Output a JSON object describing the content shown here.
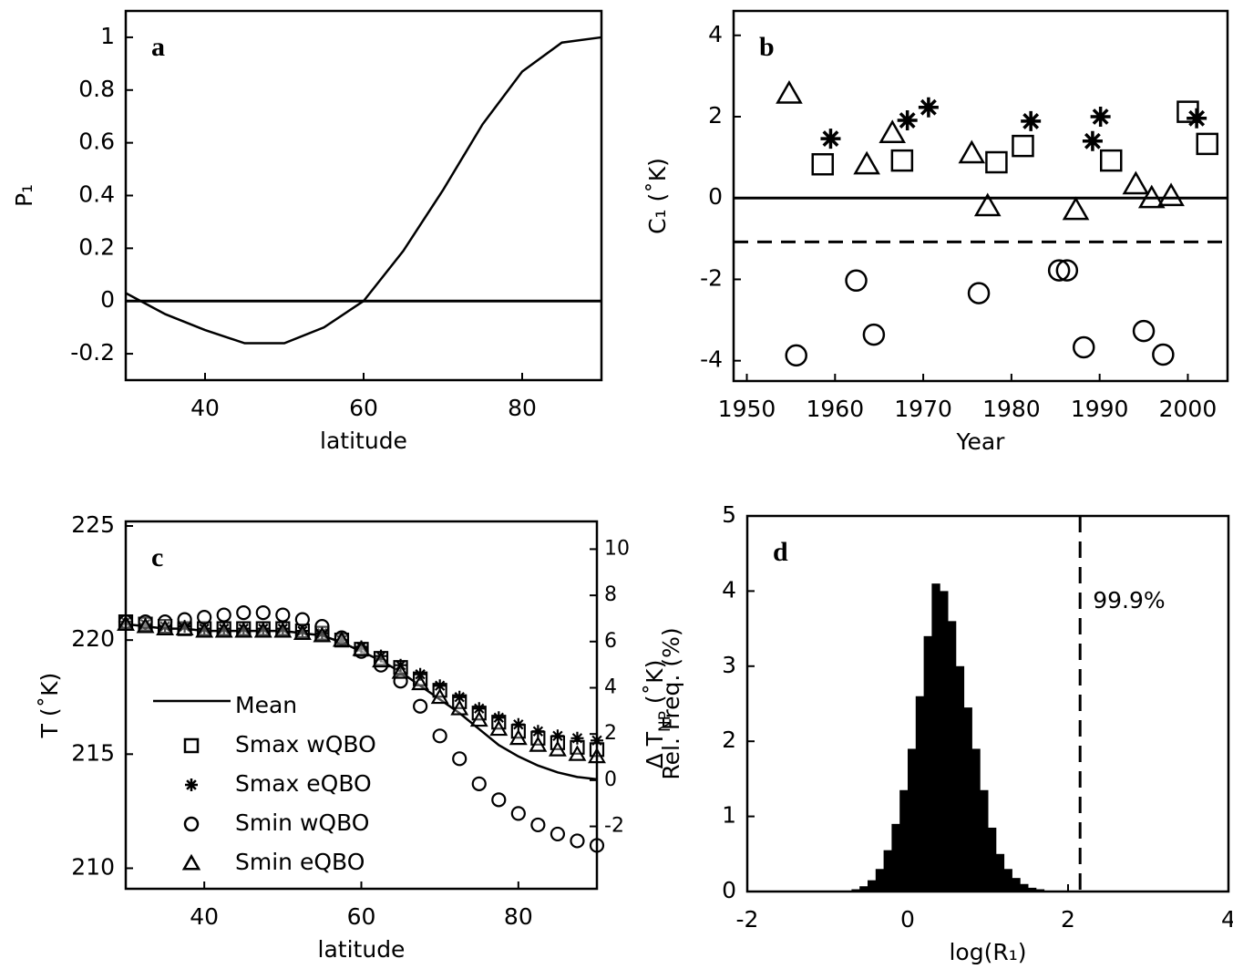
{
  "chart_data": [
    {
      "type": "line",
      "label": "a",
      "xlabel": "latitude",
      "ylabel": "P₁",
      "xlim": [
        30,
        90
      ],
      "ylim": [
        -0.3,
        1.1
      ],
      "xticks": [
        40,
        60,
        80
      ],
      "yticks": [
        -0.2,
        0,
        0.2,
        0.4,
        0.6,
        0.8,
        1
      ],
      "hlines": [
        {
          "value": 0,
          "dash": false
        }
      ],
      "x": [
        30,
        35,
        40,
        45,
        50,
        55,
        60,
        65,
        70,
        75,
        80,
        85,
        90
      ],
      "series": [
        {
          "color": "#000000",
          "values": [
            0.03,
            -0.05,
            -0.11,
            -0.16,
            -0.16,
            -0.1,
            0.0,
            0.19,
            0.42,
            0.67,
            0.87,
            0.98,
            1.0
          ]
        }
      ]
    },
    {
      "type": "scatter",
      "label": "b",
      "xlabel": "Year",
      "ylabel": "C₁ (˚K)",
      "xlim": [
        1948.5,
        2004.5
      ],
      "ylim": [
        -4.5,
        4.6
      ],
      "xticks": [
        1950,
        1960,
        1970,
        1980,
        1990,
        2000
      ],
      "yticks": [
        -4,
        -2,
        0,
        2,
        4
      ],
      "hlines": [
        {
          "value": 0,
          "dash": false
        },
        {
          "value": -1.08,
          "dash": true
        }
      ],
      "series": [
        {
          "marker": "square",
          "color": "#000000",
          "x": [
            1958.6,
            1967.6,
            1978.3,
            1981.3,
            1991.3,
            2000,
            2002.2
          ],
          "values": [
            0.83,
            0.92,
            0.88,
            1.28,
            0.92,
            2.12,
            1.33
          ]
        },
        {
          "marker": "star",
          "color": "#000000",
          "x": [
            1959.5,
            1968.2,
            1970.6,
            1982.2,
            1989.2,
            1990.1,
            2001
          ],
          "values": [
            1.46,
            1.91,
            2.23,
            1.89,
            1.4,
            2.0,
            1.96
          ]
        },
        {
          "marker": "circle",
          "color": "#000000",
          "x": [
            1955.6,
            1962.4,
            1964.4,
            1976.3,
            1985.4,
            1986.3,
            1988.2,
            1995,
            1997.2
          ],
          "values": [
            -3.87,
            -2.03,
            -3.36,
            -2.34,
            -1.78,
            -1.78,
            -3.67,
            -3.27,
            -3.85
          ]
        },
        {
          "marker": "triangle",
          "color": "#000000",
          "x": [
            1954.8,
            1963.6,
            1966.5,
            1975.5,
            1977.3,
            1987.3,
            1994.1,
            1995.9,
            1998.1
          ],
          "values": [
            2.57,
            0.83,
            1.6,
            1.1,
            -0.2,
            -0.29,
            0.34,
            0.0,
            0.05
          ]
        }
      ]
    },
    {
      "type": "line",
      "label": "c",
      "xlabel": "latitude",
      "ylabel": "T (˚K)",
      "y2label": [
        "Δ T",
        "NP",
        " (˚K)"
      ],
      "xlim": [
        30,
        90
      ],
      "ylim": [
        209.1,
        225.2
      ],
      "y2lim": [
        -4.7,
        11.2
      ],
      "xticks": [
        40,
        60,
        80
      ],
      "yticks": [
        210,
        215,
        220,
        225
      ],
      "y2ticks": [
        -2,
        0,
        2,
        4,
        6,
        8,
        10
      ],
      "legend": "lower left",
      "x": [
        30,
        32.5,
        35,
        37.5,
        40,
        42.5,
        45,
        47.5,
        50,
        52.5,
        55,
        57.5,
        60,
        62.5,
        65,
        67.5,
        70,
        72.5,
        75,
        77.5,
        80,
        82.5,
        85,
        87.5,
        90
      ],
      "series": [
        {
          "name": "Mean",
          "color": "#000000",
          "values": [
            220.7,
            220.6,
            220.5,
            220.5,
            220.4,
            220.4,
            220.4,
            220.4,
            220.4,
            220.3,
            220.2,
            219.9,
            219.5,
            219.1,
            218.6,
            218.0,
            217.4,
            216.8,
            216.1,
            215.4,
            214.9,
            214.5,
            214.2,
            214.0,
            213.9
          ]
        },
        {
          "name": "Smax wQBO",
          "marker": "square",
          "color": "#000000",
          "values": [
            220.8,
            220.7,
            220.6,
            220.5,
            220.5,
            220.5,
            220.5,
            220.5,
            220.5,
            220.4,
            220.3,
            220.0,
            219.6,
            219.2,
            218.8,
            218.3,
            217.8,
            217.3,
            216.8,
            216.4,
            216.0,
            215.7,
            215.5,
            215.3,
            215.2
          ]
        },
        {
          "name": "Smax eQBO",
          "marker": "star",
          "color": "#000000",
          "values": [
            220.8,
            220.7,
            220.6,
            220.6,
            220.5,
            220.5,
            220.5,
            220.5,
            220.5,
            220.4,
            220.3,
            220.0,
            219.7,
            219.3,
            218.9,
            218.5,
            218.0,
            217.5,
            217.0,
            216.6,
            216.3,
            216.0,
            215.8,
            215.7,
            215.6
          ]
        },
        {
          "name": "Smin wQBO",
          "marker": "circle",
          "color": "#000000",
          "values": [
            220.8,
            220.8,
            220.8,
            220.9,
            221.0,
            221.1,
            221.2,
            221.2,
            221.1,
            220.9,
            220.6,
            220.1,
            219.5,
            218.9,
            218.2,
            217.1,
            215.8,
            214.8,
            213.7,
            213.0,
            212.4,
            211.9,
            211.5,
            211.2,
            211.0
          ]
        },
        {
          "name": "Smin eQBO",
          "marker": "triangle",
          "color": "#000000",
          "values": [
            220.7,
            220.6,
            220.5,
            220.5,
            220.4,
            220.4,
            220.4,
            220.4,
            220.4,
            220.3,
            220.2,
            220.0,
            219.6,
            219.1,
            218.6,
            218.1,
            217.5,
            217.0,
            216.5,
            216.1,
            215.7,
            215.4,
            215.2,
            215.0,
            214.9
          ]
        }
      ]
    },
    {
      "type": "histogram",
      "label": "d",
      "xlabel": "log(R₁)",
      "ylabel": "Rel. Freq. (%)",
      "xlim": [
        -2,
        4
      ],
      "ylim": [
        0,
        5
      ],
      "xticks": [
        -2,
        0,
        2,
        4
      ],
      "yticks": [
        0,
        1,
        2,
        3,
        4,
        5
      ],
      "vline": 2.15,
      "annotation": "99.9%",
      "color": "#000000",
      "bins": [
        -0.8,
        -0.7,
        -0.6,
        -0.5,
        -0.4,
        -0.3,
        -0.2,
        -0.1,
        0,
        0.1,
        0.2,
        0.3,
        0.4,
        0.5,
        0.6,
        0.7,
        0.8,
        0.9,
        1.0,
        1.1,
        1.2,
        1.3,
        1.4,
        1.5,
        1.6,
        1.7,
        1.8
      ],
      "values": [
        0.01,
        0.03,
        0.07,
        0.15,
        0.3,
        0.55,
        0.9,
        1.35,
        1.9,
        2.6,
        3.4,
        4.1,
        4.0,
        3.6,
        3.0,
        2.45,
        1.9,
        1.35,
        0.85,
        0.5,
        0.3,
        0.18,
        0.1,
        0.05,
        0.03,
        0.01
      ]
    }
  ]
}
